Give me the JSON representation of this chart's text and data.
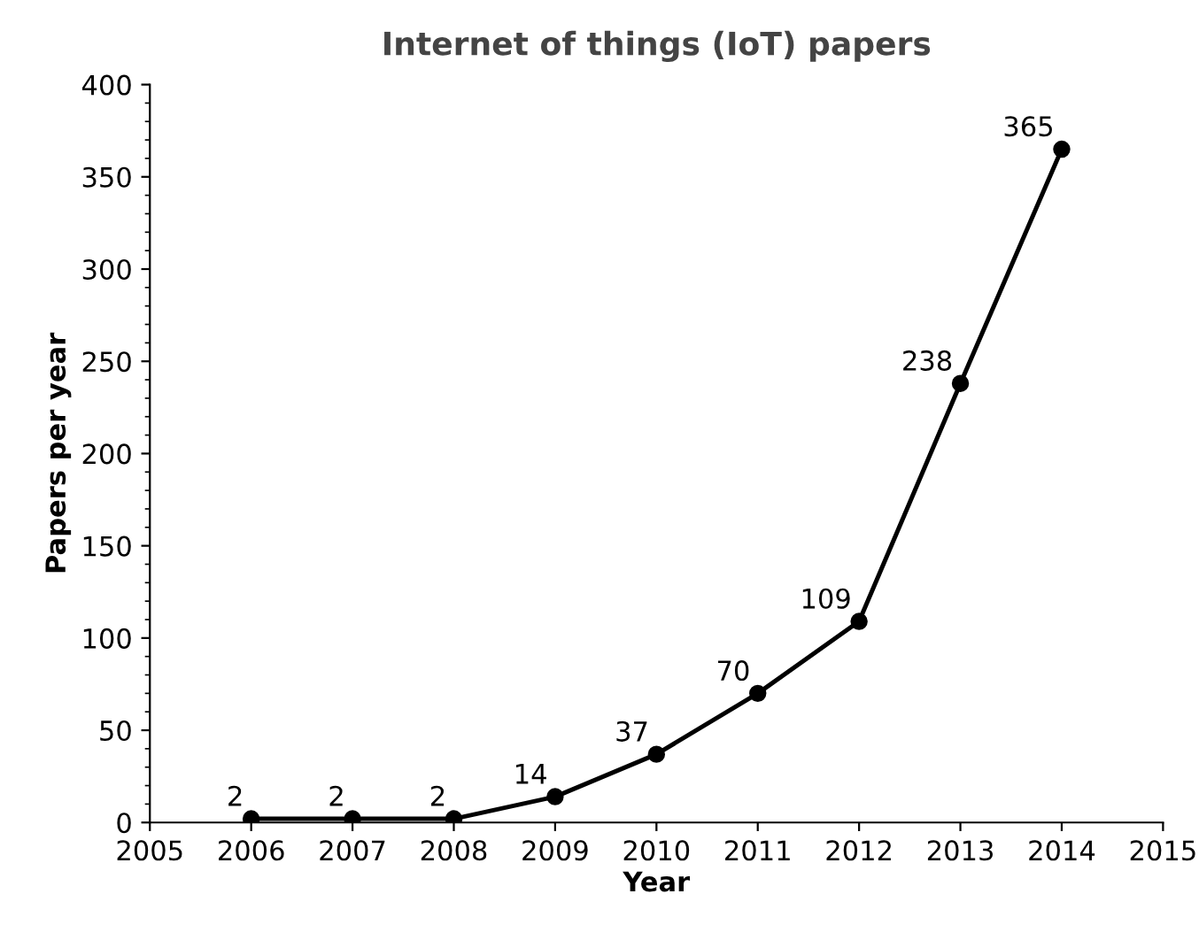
{
  "chart_data": {
    "type": "line",
    "title": "Internet of things (IoT) papers",
    "xlabel": "Year",
    "ylabel": "Papers per year",
    "x": [
      2006,
      2007,
      2008,
      2009,
      2010,
      2011,
      2012,
      2013,
      2014
    ],
    "series": [
      {
        "color": "#000000",
        "values": [
          2,
          2,
          2,
          14,
          37,
          70,
          109,
          238,
          365
        ]
      }
    ],
    "xlim": [
      2005,
      2015
    ],
    "xticks": [
      2005,
      2006,
      2007,
      2008,
      2009,
      2010,
      2011,
      2012,
      2013,
      2014,
      2015
    ],
    "ylim": [
      0,
      400
    ],
    "yticks": [
      0,
      50,
      100,
      150,
      200,
      250,
      300,
      350,
      400
    ],
    "marker": "circle",
    "line_style": "solid",
    "data_labels": true,
    "grid": false,
    "legend": false
  }
}
